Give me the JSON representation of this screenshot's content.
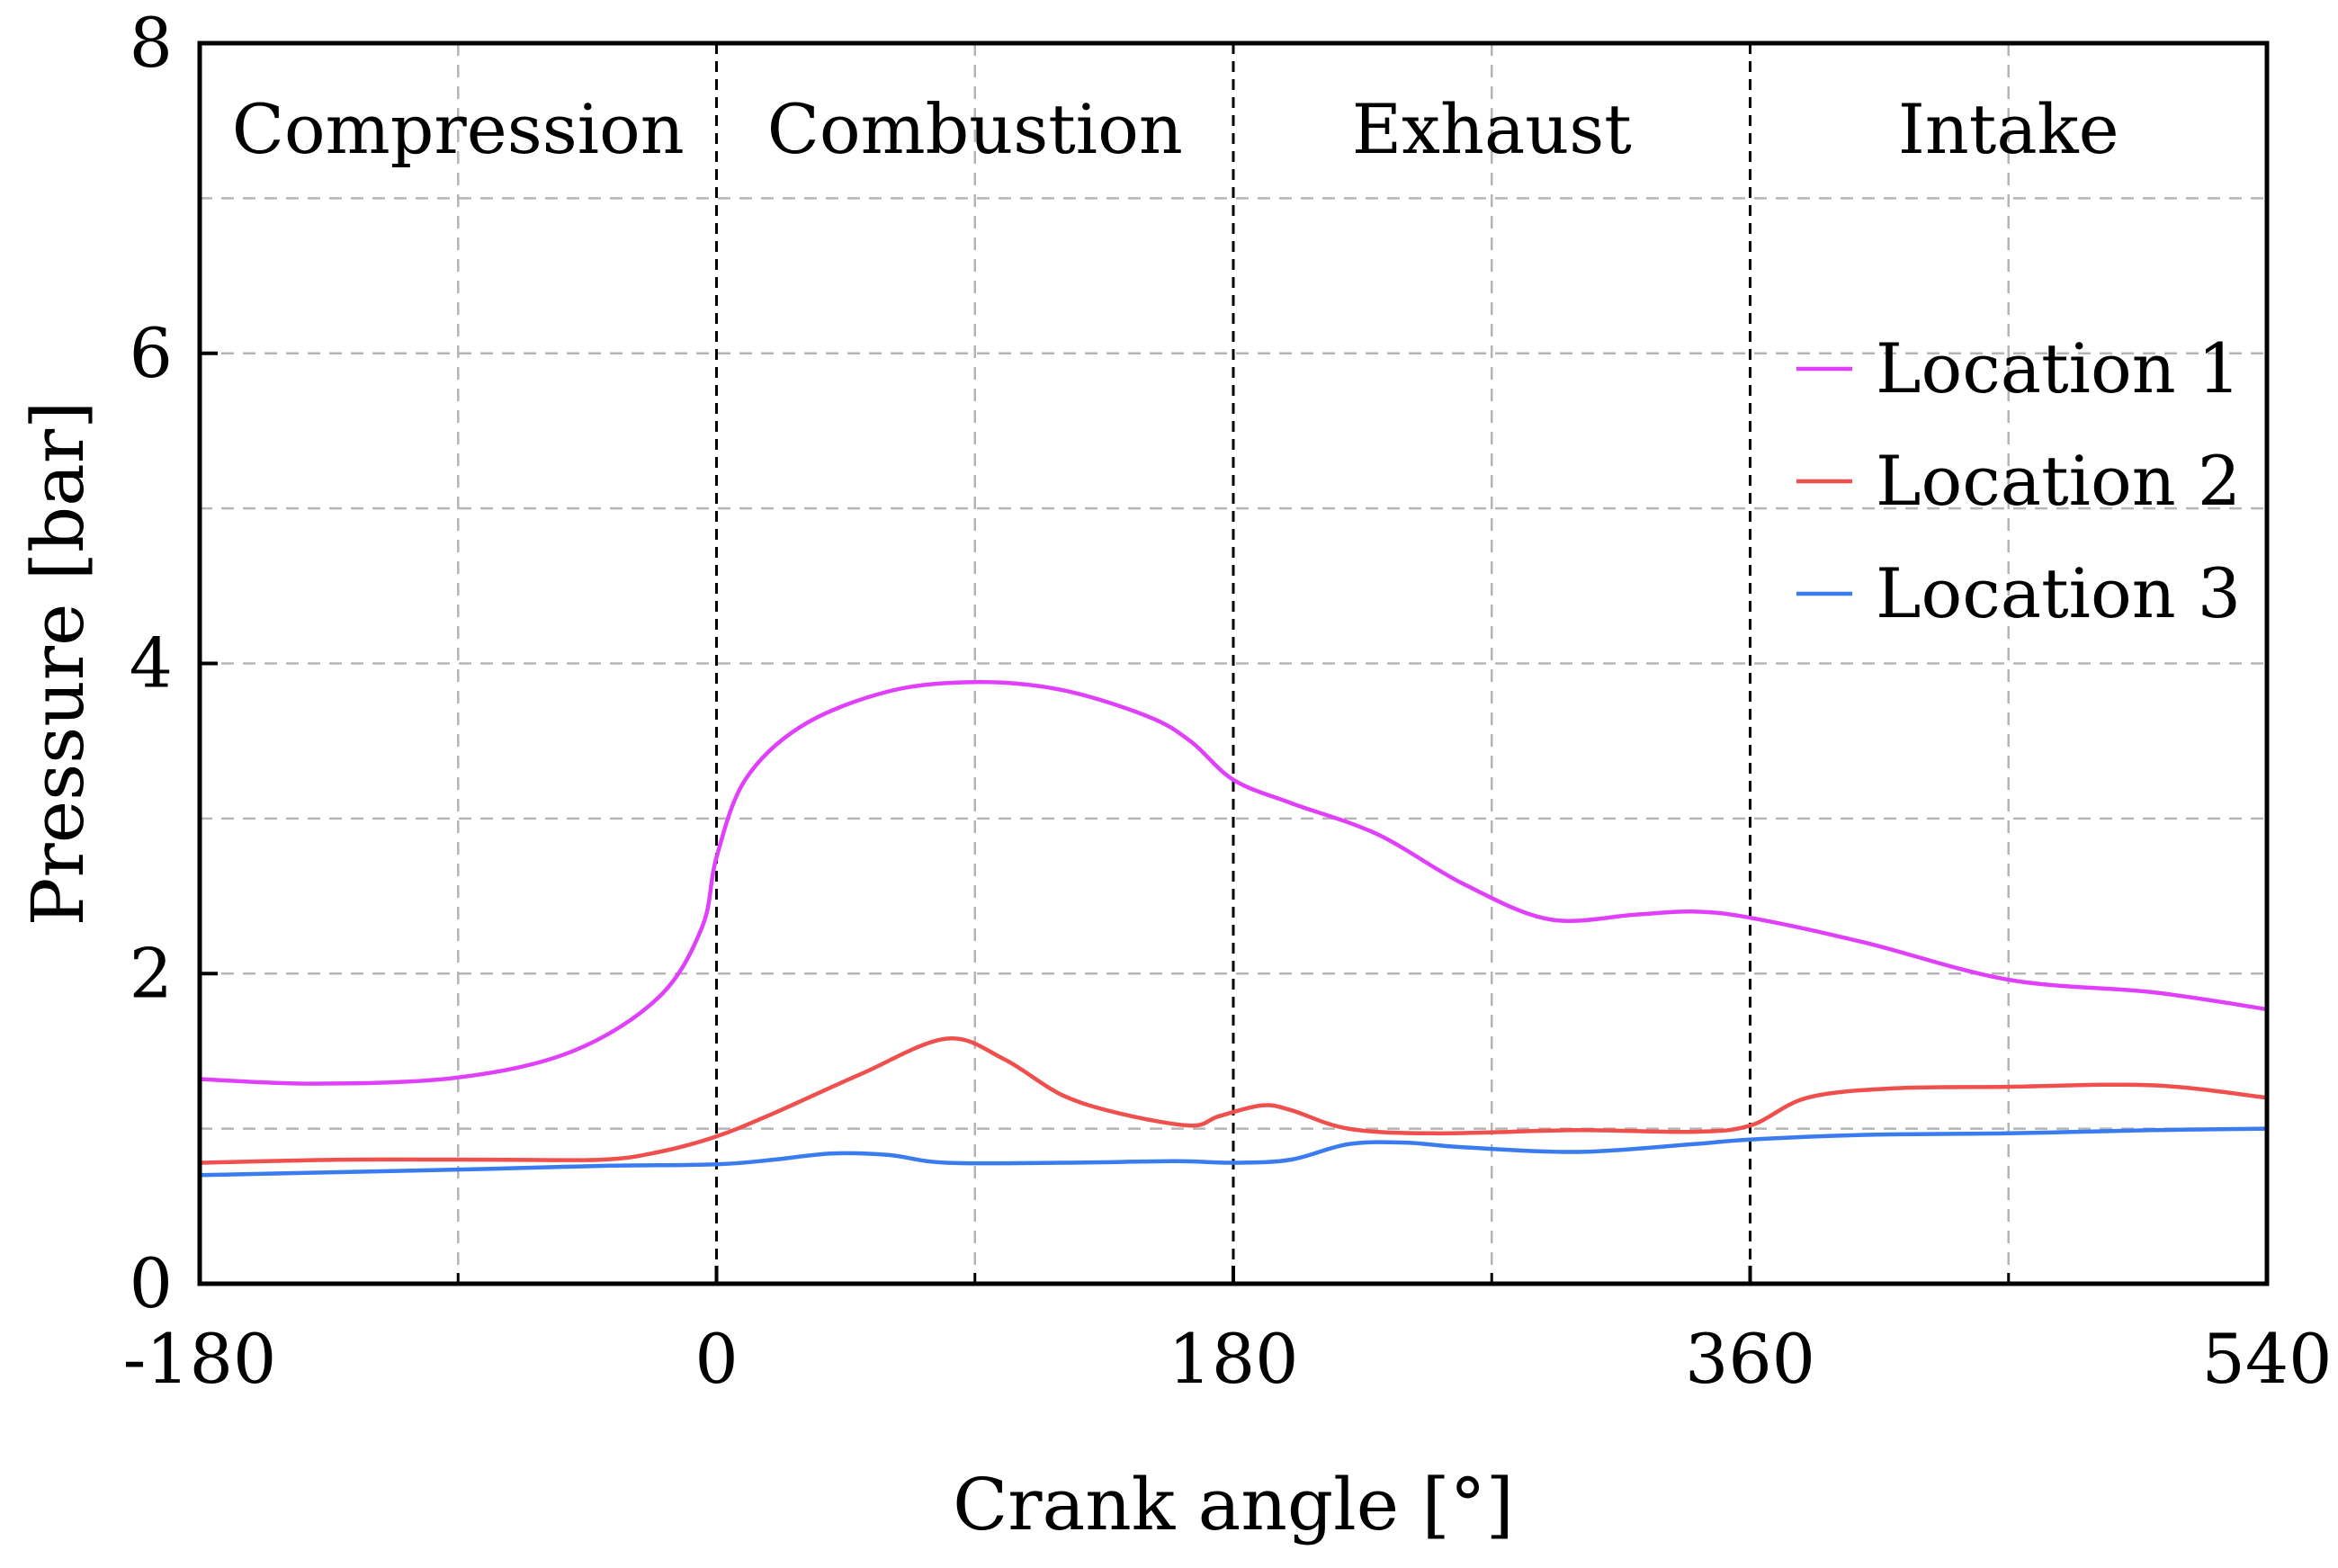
{
  "chart_data": {
    "type": "line",
    "title": "",
    "xlabel": "Crank angle [°]",
    "ylabel": "Pressure [bar]",
    "xlim": [
      -180,
      540
    ],
    "ylim": [
      0,
      8
    ],
    "xticks": [
      -180,
      0,
      180,
      360,
      540
    ],
    "xtick_labels": [
      "-180",
      "0",
      "180",
      "360",
      "540"
    ],
    "yticks": [
      0,
      2,
      4,
      6,
      8
    ],
    "ytick_labels": [
      "0",
      "2",
      "4",
      "6",
      "8"
    ],
    "grid": true,
    "phases": [
      {
        "label": "Compression",
        "start": -180,
        "end": 0
      },
      {
        "label": "Combustion",
        "start": 0,
        "end": 180
      },
      {
        "label": "Exhaust",
        "start": 180,
        "end": 360
      },
      {
        "label": "Intake",
        "start": 360,
        "end": 540
      }
    ],
    "legend_position": "right",
    "series": [
      {
        "name": "Location 1",
        "color": "#e040fb",
        "x": [
          -180,
          -140,
          -90,
          -50,
          -20,
          -5,
          0,
          10,
          30,
          60,
          90,
          120,
          150,
          165,
          180,
          200,
          230,
          260,
          290,
          320,
          340,
          360,
          400,
          450,
          500,
          540
        ],
        "y": [
          1.32,
          1.29,
          1.33,
          1.5,
          1.85,
          2.3,
          2.75,
          3.25,
          3.6,
          3.82,
          3.88,
          3.83,
          3.66,
          3.5,
          3.25,
          3.1,
          2.9,
          2.58,
          2.35,
          2.38,
          2.4,
          2.36,
          2.2,
          1.96,
          1.88,
          1.77
        ]
      },
      {
        "name": "Location 2",
        "color": "#f0504d",
        "x": [
          -180,
          -130,
          -80,
          -40,
          -20,
          0,
          20,
          50,
          80,
          100,
          120,
          140,
          165,
          175,
          190,
          200,
          220,
          250,
          300,
          340,
          360,
          380,
          410,
          450,
          500,
          540
        ],
        "y": [
          0.78,
          0.8,
          0.8,
          0.8,
          0.85,
          0.95,
          1.1,
          1.35,
          1.58,
          1.45,
          1.22,
          1.1,
          1.02,
          1.08,
          1.15,
          1.12,
          1.0,
          0.97,
          0.99,
          0.98,
          1.02,
          1.2,
          1.26,
          1.27,
          1.28,
          1.2
        ]
      },
      {
        "name": "Location 3",
        "color": "#3a7cf0",
        "x": [
          -180,
          -130,
          -80,
          -40,
          0,
          20,
          40,
          60,
          80,
          120,
          160,
          180,
          200,
          220,
          240,
          260,
          300,
          340,
          360,
          400,
          450,
          500,
          540
        ],
        "y": [
          0.7,
          0.72,
          0.74,
          0.76,
          0.77,
          0.8,
          0.84,
          0.83,
          0.78,
          0.78,
          0.79,
          0.78,
          0.8,
          0.9,
          0.91,
          0.88,
          0.85,
          0.9,
          0.93,
          0.96,
          0.97,
          0.99,
          1.0
        ]
      }
    ]
  }
}
